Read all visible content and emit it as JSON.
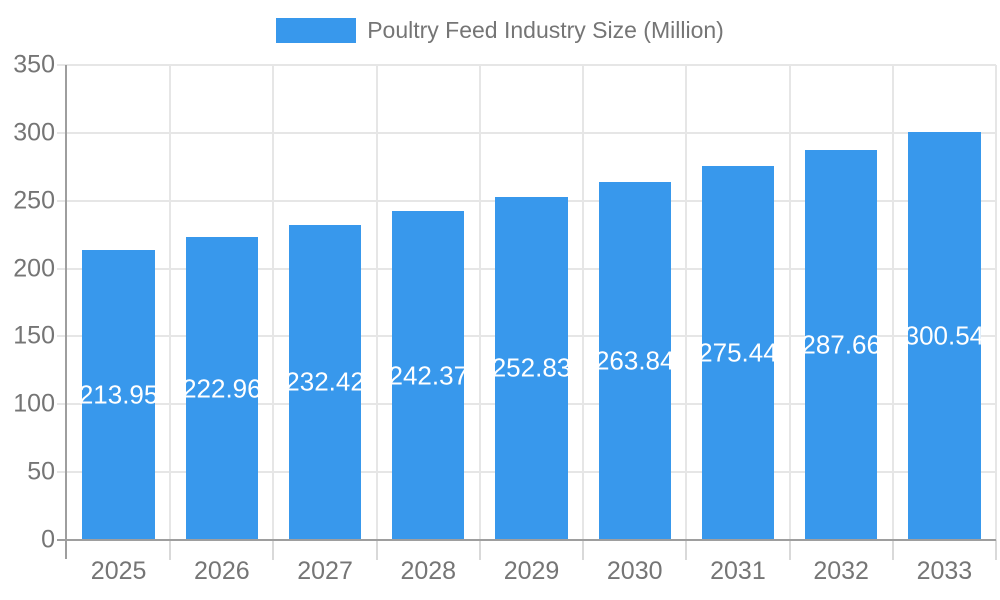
{
  "chart_data": {
    "type": "bar",
    "title": "Poultry Feed Industry Size (Million)",
    "categories": [
      "2025",
      "2026",
      "2027",
      "2028",
      "2029",
      "2030",
      "2031",
      "2032",
      "2033"
    ],
    "values": [
      213.95,
      222.96,
      232.42,
      242.37,
      252.83,
      263.84,
      275.44,
      287.66,
      300.54
    ],
    "value_labels": [
      "213.95",
      "222.96",
      "232.42",
      "242.37",
      "252.83",
      "263.84",
      "275.44",
      "287.66",
      "300.54"
    ],
    "ylim": [
      0,
      350
    ],
    "ytick_step": 50,
    "ytick_labels": [
      "0",
      "50",
      "100",
      "150",
      "200",
      "250",
      "300",
      "350"
    ],
    "grid": true,
    "legend_position": "top",
    "bar_color": "#3898EC",
    "bar_label_color": "#FFFFFF",
    "axis_text_color": "#757575",
    "grid_color": "#E6E6E6",
    "axis_line_color": "#9E9E9E"
  }
}
